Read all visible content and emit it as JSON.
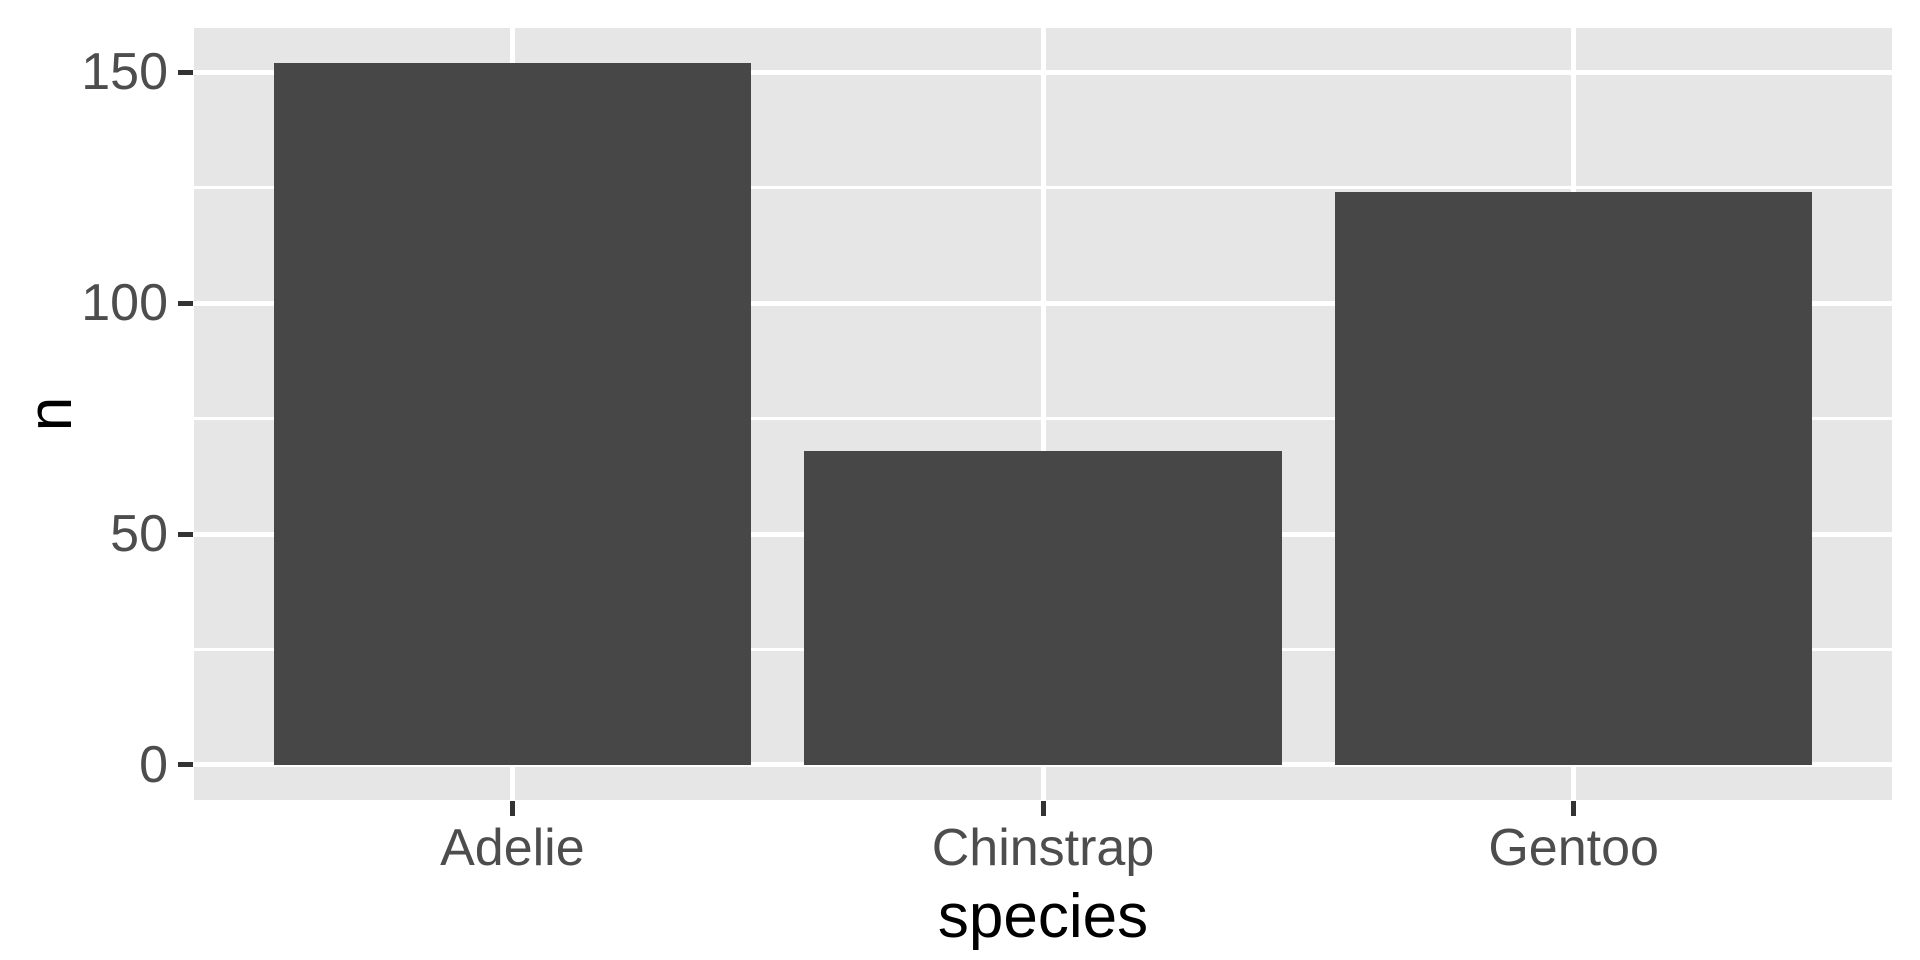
{
  "chart_data": {
    "type": "bar",
    "categories": [
      "Adelie",
      "Chinstrap",
      "Gentoo"
    ],
    "values": [
      152,
      68,
      124
    ],
    "title": "",
    "xlabel": "species",
    "ylabel": "n",
    "ylim": [
      -7.6,
      159.6
    ],
    "yticks": [
      0,
      50,
      100,
      150
    ],
    "yminor": [
      25,
      75,
      125
    ],
    "grid": true,
    "legend": false,
    "colors": {
      "bar_fill": "#474747",
      "panel_background": "#E6E6E6",
      "gridline": "#FFFFFF",
      "tick_mark": "#333333",
      "axis_text": "#4D4D4D",
      "axis_title": "#000000",
      "figure_background": "#FFFFFF"
    }
  }
}
